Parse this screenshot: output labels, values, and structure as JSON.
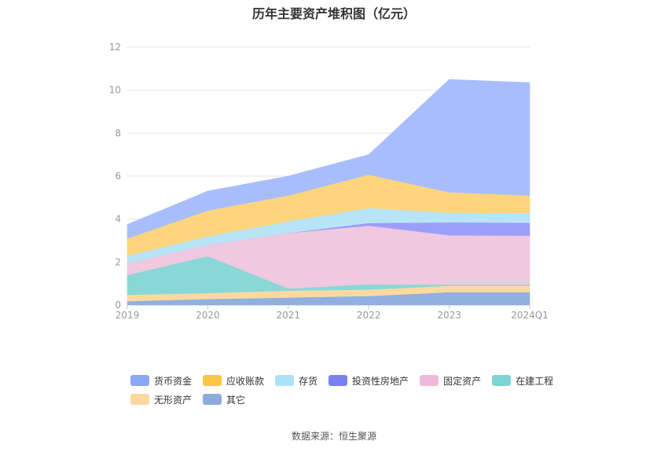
{
  "chart_data": {
    "type": "area",
    "stacked": true,
    "title": "历年主要资产堆积图（亿元）",
    "categories": [
      "2019",
      "2020",
      "2021",
      "2022",
      "2023",
      "2024Q1"
    ],
    "ylim": [
      0,
      12
    ],
    "yticks": [
      "0",
      "2",
      "4",
      "6",
      "8",
      "10",
      "12"
    ],
    "grid": true,
    "legend_position": "bottom",
    "series": [
      {
        "name": "其它",
        "color": "#8fb0e0",
        "values": [
          0.18,
          0.28,
          0.35,
          0.42,
          0.6,
          0.6
        ]
      },
      {
        "name": "无形资产",
        "color": "#fdd9a0",
        "values": [
          0.3,
          0.28,
          0.32,
          0.3,
          0.3,
          0.3
        ]
      },
      {
        "name": "在建工程",
        "color": "#8ad7d7",
        "values": [
          0.92,
          1.72,
          0.1,
          0.25,
          0.05,
          0.05
        ]
      },
      {
        "name": "固定资产",
        "color": "#f0c8e0",
        "values": [
          0.55,
          0.52,
          2.58,
          2.73,
          2.3,
          2.28
        ]
      },
      {
        "name": "投资性房地产",
        "color": "#9b9ff8",
        "values": [
          0.0,
          0.0,
          0.0,
          0.12,
          0.6,
          0.6
        ]
      },
      {
        "name": "存货",
        "color": "#b8e4f8",
        "values": [
          0.35,
          0.4,
          0.55,
          0.7,
          0.45,
          0.45
        ]
      },
      {
        "name": "应收账款",
        "color": "#fdd57c",
        "values": [
          0.8,
          1.2,
          1.2,
          1.55,
          0.95,
          0.82
        ]
      },
      {
        "name": "货币资金",
        "color": "#a8bdfc",
        "values": [
          0.65,
          0.9,
          0.9,
          0.93,
          5.25,
          5.25
        ]
      }
    ]
  },
  "legend_order": [
    {
      "name": "货币资金",
      "color": "#8aa8f8"
    },
    {
      "name": "应收账款",
      "color": "#fdc444"
    },
    {
      "name": "存货",
      "color": "#ace2f9"
    },
    {
      "name": "投资性房地产",
      "color": "#7b80f0"
    },
    {
      "name": "固定资产",
      "color": "#efb9db"
    },
    {
      "name": "在建工程",
      "color": "#7cd4d4"
    },
    {
      "name": "无形资产",
      "color": "#fdd79c"
    },
    {
      "name": "其它",
      "color": "#8fabdc"
    }
  ],
  "source": "数据来源：恒生聚源"
}
